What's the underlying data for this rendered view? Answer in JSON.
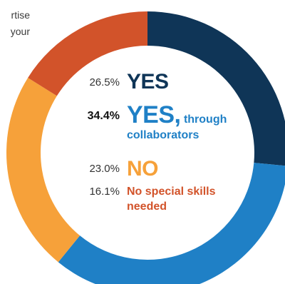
{
  "intro_fragment": [
    "rtise",
    "your"
  ],
  "chart_data": {
    "type": "pie",
    "style": "donut",
    "start": "12 o'clock",
    "direction": "clockwise",
    "slices": [
      {
        "pct": "26.5%",
        "value": 26.5,
        "main": "YES",
        "rest": "",
        "color": "#0f3557"
      },
      {
        "pct": "34.4%",
        "value": 34.4,
        "main": "YES,",
        "rest": "through",
        "line2": "collaborators",
        "color": "#1f80c6"
      },
      {
        "pct": "23.0%",
        "value": 23.0,
        "main": "NO",
        "rest": "",
        "color": "#f6a13a"
      },
      {
        "pct": "16.1%",
        "value": 16.1,
        "main": "",
        "rest": "No special skills",
        "line2": "needed",
        "color": "#d2532a"
      }
    ]
  }
}
